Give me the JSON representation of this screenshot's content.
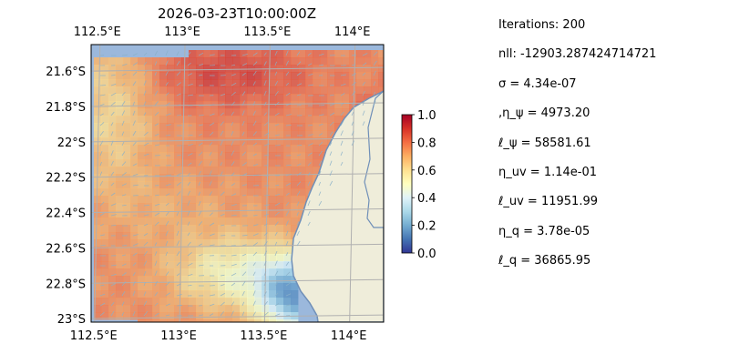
{
  "chart_data": {
    "type": "heatmap",
    "title": "2026-03-23T10:00:00Z",
    "map": {
      "lon_range": [
        112.48,
        114.2
      ],
      "lat_range": [
        -23.02,
        -21.45
      ],
      "top_lon_ticks": [
        "112.5°E",
        "113°E",
        "113.5°E",
        "114°E"
      ],
      "top_lon_values": [
        112.5,
        113.0,
        113.5,
        114.0
      ],
      "bottom_lon_ticks": [
        "112.5°E",
        "113°E",
        "113.5°E",
        "114°E"
      ],
      "bottom_lon_values": [
        112.5,
        113.0,
        113.5,
        114.0
      ],
      "lat_ticks": [
        "21.6°S",
        "21.8°S",
        "22°S",
        "22.2°S",
        "22.4°S",
        "22.6°S",
        "22.8°S",
        "23°S"
      ],
      "lat_values": [
        -21.6,
        -21.8,
        -22.0,
        -22.2,
        -22.4,
        -22.6,
        -22.8,
        -23.0
      ],
      "grid": true,
      "ocean_color": "#9bb8dc",
      "land_color": "#efedda",
      "coast_color": "#6f8fb8"
    },
    "colorbar": {
      "range": [
        0.0,
        1.0
      ],
      "ticks": [
        "0.0",
        "0.2",
        "0.4",
        "0.6",
        "0.8",
        "1.0"
      ],
      "tick_values": [
        0.0,
        0.2,
        0.4,
        0.6,
        0.8,
        1.0
      ],
      "colormap": "RdYlBu_r"
    }
  },
  "stats": [
    "Iterations: 200",
    "nll: -12903.287424714721",
    "σ = 4.34e-07",
    ",η_ψ = 4973.20",
    "ℓ_ψ = 58581.61",
    "η_uv = 1.14e-01",
    "ℓ_uv = 11951.99",
    "η_q = 3.78e-05",
    "ℓ_q = 36865.95"
  ]
}
